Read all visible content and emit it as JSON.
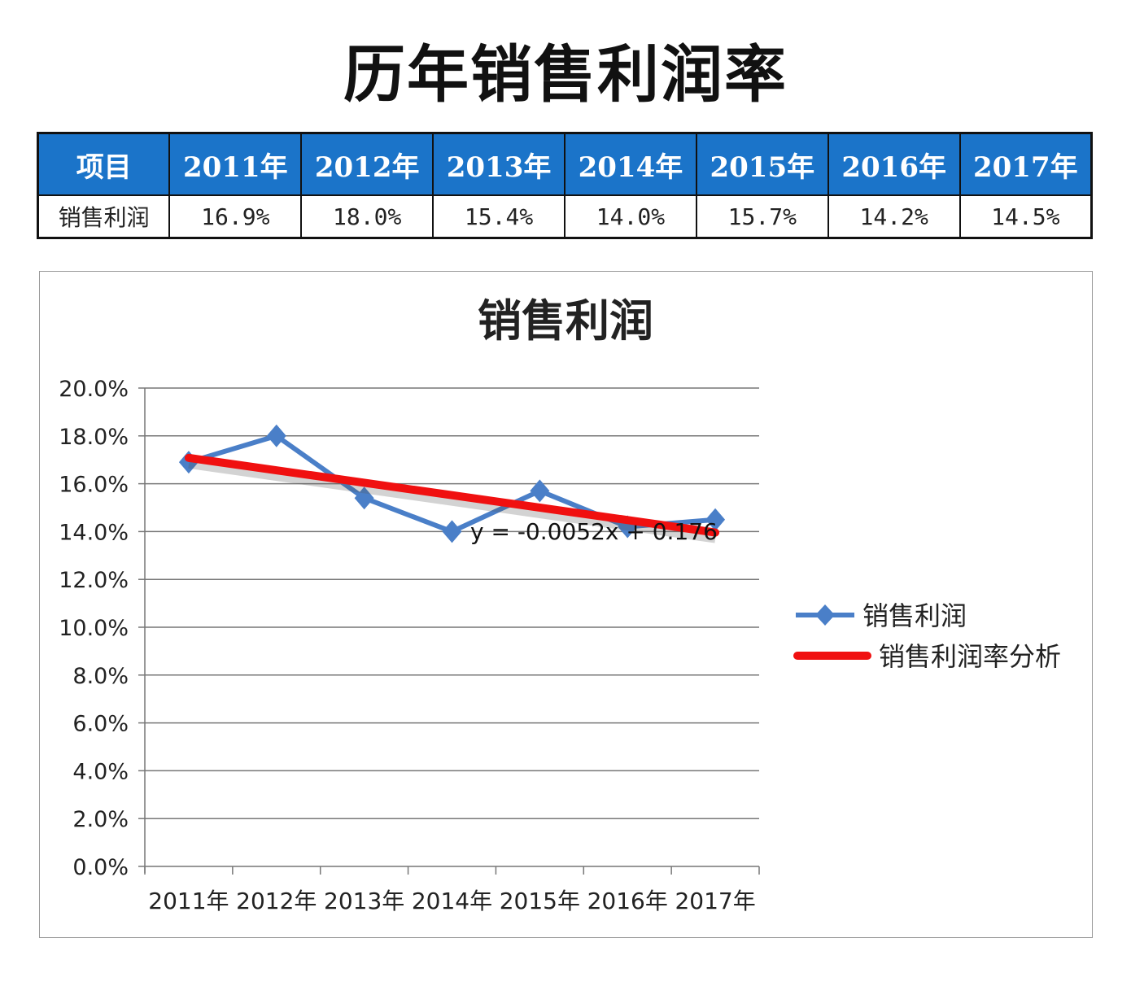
{
  "title": "历年销售利润率",
  "table": {
    "headers": [
      "项目",
      "2011年",
      "2012年",
      "2013年",
      "2014年",
      "2015年",
      "2016年",
      "2017年"
    ],
    "row_label": "销售利润",
    "values": [
      "16.9%",
      "18.0%",
      "15.4%",
      "14.0%",
      "15.7%",
      "14.2%",
      "14.5%"
    ]
  },
  "chart_data": {
    "type": "line",
    "title": "销售利润",
    "categories": [
      "2011年",
      "2012年",
      "2013年",
      "2014年",
      "2015年",
      "2016年",
      "2017年"
    ],
    "series": [
      {
        "name": "销售利润",
        "values": [
          0.169,
          0.18,
          0.154,
          0.14,
          0.157,
          0.142,
          0.145
        ],
        "color": "#4a7fc8",
        "marker": "diamond"
      },
      {
        "name": "销售利润率分析",
        "type": "linear-trendline",
        "slope": -0.0052,
        "intercept": 0.176,
        "color": "#f01010"
      }
    ],
    "trendline_equation": "y = -0.0052x + 0.176",
    "ylim": [
      0,
      0.2
    ],
    "yticks": [
      "0.0%",
      "2.0%",
      "4.0%",
      "6.0%",
      "8.0%",
      "10.0%",
      "12.0%",
      "14.0%",
      "16.0%",
      "18.0%",
      "20.0%"
    ],
    "grid": true,
    "legend": "right"
  }
}
